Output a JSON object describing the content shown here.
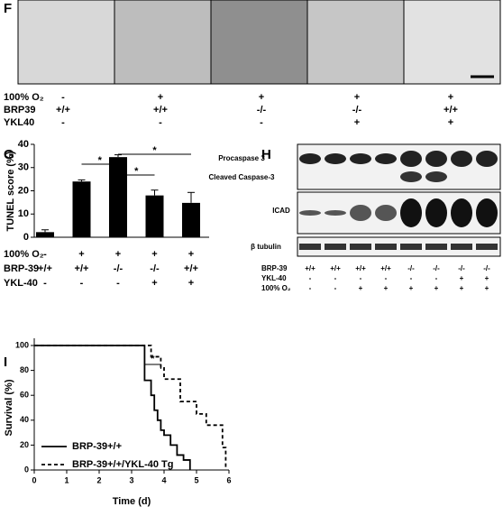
{
  "panel_f": {
    "label": "F",
    "conditions": [
      {
        "name": "100% O₂",
        "values": [
          "-",
          "+",
          "+",
          "+",
          "+"
        ]
      },
      {
        "name": "BRP39",
        "values": [
          "+/+",
          "+/+",
          "-/-",
          "-/-",
          "+/+"
        ]
      },
      {
        "name": "YKL40",
        "values": [
          "-",
          "-",
          "-",
          "+",
          "+"
        ]
      }
    ]
  },
  "panel_h": {
    "label": "H",
    "bands": [
      "Procaspase 3",
      "Cleaved Caspase-3",
      "ICAD",
      "β tubulin"
    ],
    "conditions": [
      {
        "name": "BRP-39",
        "values": [
          "+/+",
          "+/+",
          "+/+",
          "+/+",
          "-/-",
          "-/-",
          "-/-",
          "-/-"
        ]
      },
      {
        "name": "YKL-40",
        "values": [
          "-",
          "-",
          "-",
          "-",
          "-",
          "-",
          "+",
          "+"
        ]
      },
      {
        "name": "100% O₂",
        "values": [
          "-",
          "-",
          "+",
          "+",
          "+",
          "+",
          "+",
          "+"
        ]
      }
    ]
  },
  "chart_data": [
    {
      "label": "G",
      "type": "bar",
      "y_label": "TUNEL score (%)",
      "values": [
        2.2,
        24,
        34.5,
        18,
        14.8
      ],
      "errors": [
        1,
        0.7,
        1,
        2.3,
        4.5
      ],
      "color": "#000000",
      "ylim": [
        0,
        40
      ],
      "yticks": [
        0,
        10,
        20,
        30,
        40
      ],
      "annotations": [
        "*",
        "*",
        "*"
      ],
      "conditions": [
        {
          "name": "100% O₂",
          "values": [
            "-",
            "+",
            "+",
            "+",
            "+"
          ]
        },
        {
          "name": "BRP-39",
          "values": [
            "+/+",
            "+/+",
            "-/-",
            "-/-",
            "+/+"
          ]
        },
        {
          "name": "YKL-40",
          "values": [
            "-",
            "-",
            "-",
            "+",
            "+"
          ]
        }
      ]
    },
    {
      "label": "I",
      "type": "line",
      "x_label": "Time (d)",
      "y_label": "Survival (%)",
      "xlim": [
        0,
        6
      ],
      "xticks": [
        0,
        1,
        2,
        3,
        4,
        5,
        6
      ],
      "ylim": [
        0,
        100
      ],
      "yticks": [
        0,
        20,
        40,
        60,
        80,
        100
      ],
      "annotations": [
        "*"
      ],
      "series": [
        {
          "name": "BRP-39+/+",
          "color": "#000000",
          "style": "solid",
          "x": [
            0,
            3.4,
            3.4,
            3.6,
            3.6,
            3.7,
            3.7,
            3.8,
            3.8,
            3.9,
            3.9,
            4.0,
            4.0,
            4.2,
            4.2,
            4.4,
            4.4,
            4.6,
            4.6,
            4.8,
            4.8
          ],
          "values": [
            100,
            100,
            72,
            72,
            60,
            60,
            48,
            48,
            40,
            40,
            32,
            32,
            28,
            28,
            20,
            20,
            12,
            12,
            8,
            8,
            0
          ]
        },
        {
          "name": "BRP-39+/+/YKL-40 Tg",
          "color": "#000000",
          "style": "dashed",
          "x": [
            0,
            3.6,
            3.6,
            3.9,
            3.9,
            4.0,
            4.0,
            4.5,
            4.5,
            5.0,
            5.0,
            5.3,
            5.3,
            5.8,
            5.8,
            5.9,
            5.9
          ],
          "values": [
            100,
            100,
            91,
            91,
            82,
            82,
            73,
            73,
            55,
            55,
            45,
            45,
            36,
            36,
            18,
            18,
            0
          ]
        }
      ]
    }
  ]
}
